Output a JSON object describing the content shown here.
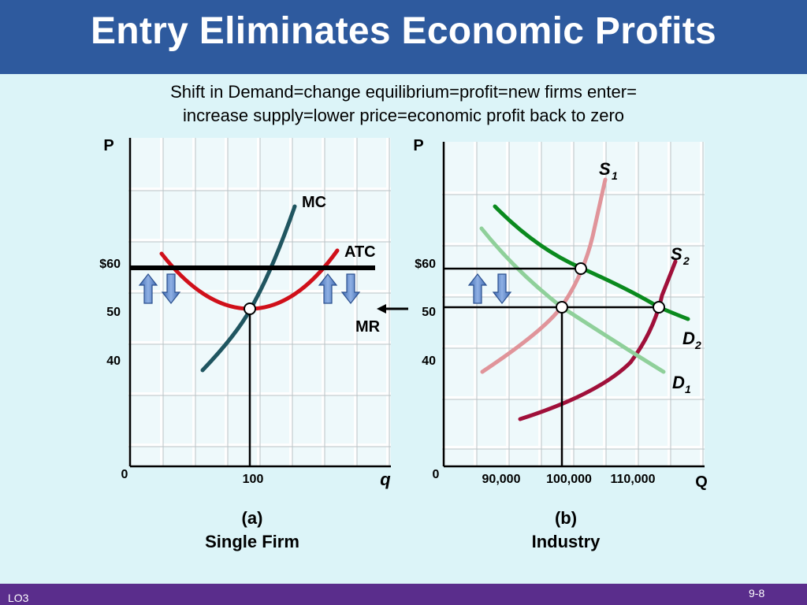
{
  "header": {
    "title": "Entry Eliminates Economic Profits",
    "subtitle_line1": "Shift in Demand=change equilibrium=profit=new firms enter=",
    "subtitle_line2": "increase supply=lower price=economic profit back to zero"
  },
  "panel_a": {
    "y_axis_label": "P",
    "x_axis_label": "q",
    "origin_label": "0",
    "price_ticks": [
      "$60",
      "50",
      "40"
    ],
    "quantity_tick": "100",
    "curve_labels": {
      "mc": "MC",
      "atc": "ATC",
      "mr": "MR"
    },
    "caption_letter": "(a)",
    "caption": "Single Firm"
  },
  "panel_b": {
    "y_axis_label": "P",
    "x_axis_label": "Q",
    "origin_label": "0",
    "price_ticks": [
      "$60",
      "50",
      "40"
    ],
    "quantity_ticks": [
      "90,000",
      "100,000",
      "110,000"
    ],
    "curve_labels": {
      "s1": "S",
      "s1_sub": "1",
      "s2": "S",
      "s2_sub": "2",
      "d1": "D",
      "d1_sub": "1",
      "d2": "D",
      "d2_sub": "2"
    },
    "caption_letter": "(b)",
    "caption": "Industry"
  },
  "colors": {
    "header_bg": "#2e5a9e",
    "footer_bg": "#5a2d8c",
    "background": "#dcf4f8",
    "mc": "#1f5560",
    "atc": "#d0101a",
    "mr": "#000000",
    "s1": "#e0949a",
    "s2": "#a0103a",
    "d1": "#8fd09a",
    "d2": "#0a8a1e",
    "arrow_fill": "#5b85c8"
  },
  "footer": {
    "left": "LO3",
    "right": "9-8"
  }
}
